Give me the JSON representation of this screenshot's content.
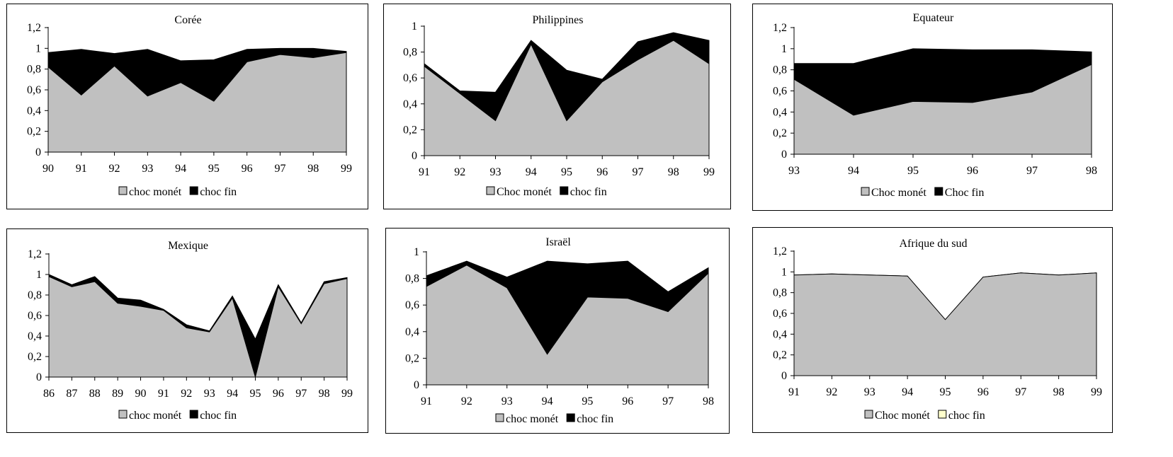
{
  "colors": {
    "monetary": "#c0c0c0",
    "financial": "#000000",
    "financial_open": "#ffffcc",
    "axis": "#000000"
  },
  "chart_data": [
    {
      "type": "area",
      "stacked": true,
      "title": "Corée",
      "x": [
        "90",
        "91",
        "92",
        "93",
        "94",
        "95",
        "96",
        "97",
        "98",
        "99"
      ],
      "yticks": [
        "0",
        "0,2",
        "0,4",
        "0,6",
        "0,8",
        "1",
        "1,2"
      ],
      "ylim": [
        0,
        1.2
      ],
      "series": [
        {
          "name": "choc monét",
          "values": [
            0.82,
            0.55,
            0.83,
            0.54,
            0.67,
            0.49,
            0.87,
            0.94,
            0.91,
            0.96
          ]
        },
        {
          "name": "choc fin",
          "values": [
            0.14,
            0.44,
            0.12,
            0.45,
            0.21,
            0.4,
            0.12,
            0.06,
            0.09,
            0.01
          ]
        }
      ],
      "legend": "bottom",
      "grid": false
    },
    {
      "type": "area",
      "stacked": true,
      "title": "Philippines",
      "x": [
        "91",
        "92",
        "93",
        "94",
        "95",
        "96",
        "97",
        "98",
        "99"
      ],
      "yticks": [
        "0",
        "0,2",
        "0,4",
        "0,6",
        "0,8",
        "1"
      ],
      "ylim": [
        0,
        1
      ],
      "series": [
        {
          "name": "Choc monét",
          "values": [
            0.69,
            0.48,
            0.27,
            0.86,
            0.27,
            0.57,
            0.74,
            0.89,
            0.71
          ]
        },
        {
          "name": "choc fin",
          "values": [
            0.02,
            0.02,
            0.22,
            0.03,
            0.39,
            0.02,
            0.14,
            0.06,
            0.18
          ]
        }
      ],
      "legend": "bottom",
      "grid": false
    },
    {
      "type": "area",
      "stacked": true,
      "title": "Equateur",
      "x": [
        "93",
        "94",
        "95",
        "96",
        "97",
        "98"
      ],
      "yticks": [
        "0",
        "0,2",
        "0,4",
        "0,6",
        "0,8",
        "1",
        "1,2"
      ],
      "ylim": [
        0,
        1.2
      ],
      "series": [
        {
          "name": "Choc monét",
          "values": [
            0.71,
            0.37,
            0.5,
            0.49,
            0.59,
            0.85
          ]
        },
        {
          "name": "Choc fin",
          "values": [
            0.15,
            0.49,
            0.5,
            0.5,
            0.4,
            0.12
          ]
        }
      ],
      "legend": "bottom",
      "grid": false
    },
    {
      "type": "area",
      "stacked": true,
      "title": "Mexique",
      "x": [
        "86",
        "87",
        "88",
        "89",
        "90",
        "91",
        "92",
        "93",
        "94",
        "95",
        "96",
        "97",
        "98",
        "99"
      ],
      "yticks": [
        "0",
        "0,2",
        "0,4",
        "0,6",
        "0,8",
        "1",
        "1,2"
      ],
      "ylim": [
        0,
        1.2
      ],
      "series": [
        {
          "name": "choc monét",
          "values": [
            0.98,
            0.88,
            0.93,
            0.72,
            0.69,
            0.65,
            0.48,
            0.44,
            0.77,
            0.0,
            0.88,
            0.52,
            0.91,
            0.96
          ]
        },
        {
          "name": "choc fin",
          "values": [
            0.02,
            0.02,
            0.05,
            0.05,
            0.06,
            0.01,
            0.03,
            0.01,
            0.02,
            0.37,
            0.02,
            0.01,
            0.02,
            0.01
          ]
        }
      ],
      "legend": "bottom",
      "grid": false
    },
    {
      "type": "area",
      "stacked": true,
      "title": "Israël",
      "x": [
        "91",
        "92",
        "93",
        "94",
        "95",
        "96",
        "97",
        "98"
      ],
      "yticks": [
        "0",
        "0,2",
        "0,4",
        "0,6",
        "0,8",
        "1"
      ],
      "ylim": [
        0,
        1
      ],
      "series": [
        {
          "name": "choc monét",
          "values": [
            0.74,
            0.9,
            0.73,
            0.23,
            0.66,
            0.65,
            0.55,
            0.84
          ]
        },
        {
          "name": "choc fin",
          "values": [
            0.08,
            0.03,
            0.08,
            0.7,
            0.25,
            0.28,
            0.15,
            0.04
          ]
        }
      ],
      "legend": "bottom",
      "grid": false
    },
    {
      "type": "area",
      "stacked": true,
      "title": "Afrique du sud",
      "x": [
        "91",
        "92",
        "93",
        "94",
        "95",
        "96",
        "97",
        "98",
        "99"
      ],
      "yticks": [
        "0",
        "0,2",
        "0,4",
        "0,6",
        "0,8",
        "1",
        "1,2"
      ],
      "ylim": [
        0,
        1.2
      ],
      "series": [
        {
          "name": "Choc monét",
          "values": [
            0.97,
            0.98,
            0.97,
            0.96,
            0.54,
            0.95,
            0.99,
            0.97,
            0.99
          ]
        },
        {
          "name": "choc fin",
          "values": [
            0.0,
            0.0,
            0.0,
            0.0,
            0.0,
            0.0,
            0.0,
            0.0,
            0.0
          ]
        }
      ],
      "legend": "bottom",
      "grid": false
    }
  ]
}
